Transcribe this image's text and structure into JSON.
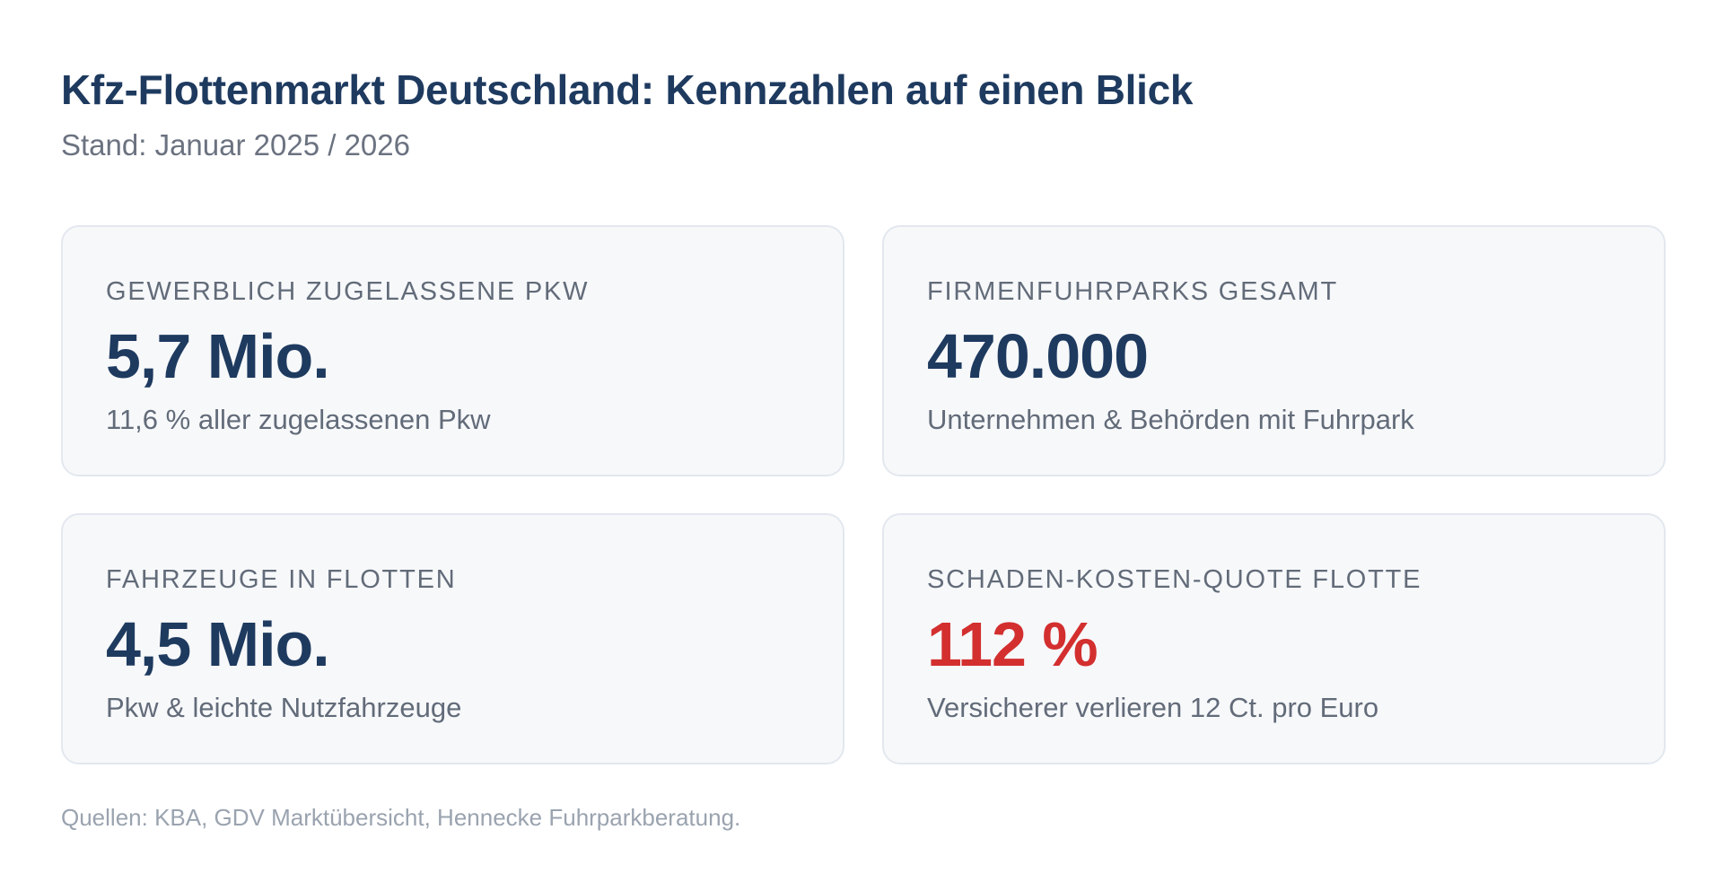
{
  "header": {
    "title": "Kfz-Flottenmarkt Deutschland: Kennzahlen auf einen Blick",
    "subtitle": "Stand: Januar 2025 / 2026"
  },
  "cards": [
    {
      "label": "GEWERBLICH ZUGELASSENE PKW",
      "value": "5,7 Mio.",
      "note": "11,6 % aller zugelassenen Pkw"
    },
    {
      "label": "FIRMENFUHRPARKS GESAMT",
      "value": "470.000",
      "note": "Unternehmen & Behörden mit Fuhrpark"
    },
    {
      "label": "FAHRZEUGE IN FLOTTEN",
      "value": "4,5 Mio.",
      "note": "Pkw & leichte Nutzfahrzeuge"
    },
    {
      "label": "SCHADEN-KOSTEN-QUOTE FLOTTE",
      "value": "112 %",
      "note": "Versicherer verlieren 12 Ct. pro Euro",
      "value_color": "#d32f2f"
    }
  ],
  "footer": {
    "sources": "Quellen: KBA, GDV Marktübersicht, Hennecke Fuhrparkberatung."
  },
  "colors": {
    "primary": "#1e3a5f",
    "alert": "#d32f2f",
    "muted": "#626b79",
    "card_background": "#f7f8fa"
  }
}
